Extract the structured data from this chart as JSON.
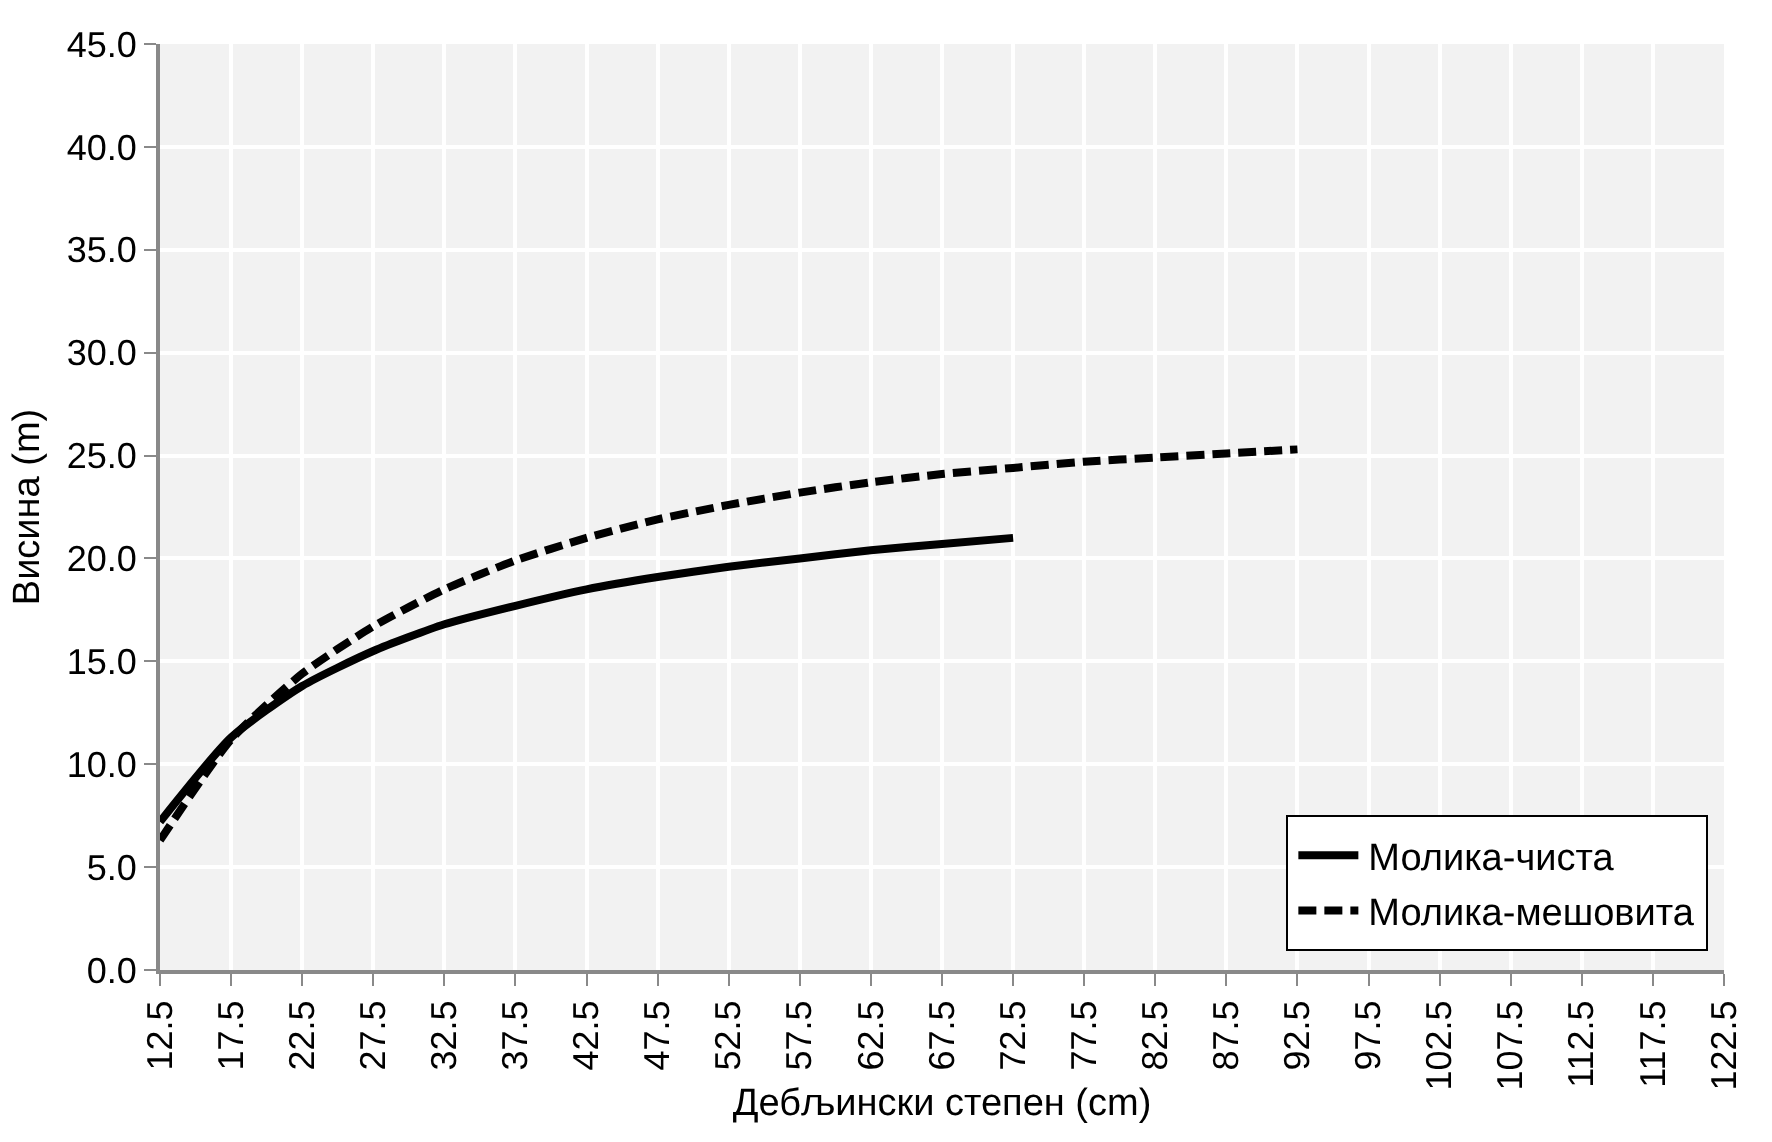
{
  "chart_data": {
    "type": "line",
    "xlabel": "Дебљински степен (cm)",
    "ylabel": "Висина (m)",
    "x": [
      12.5,
      17.5,
      22.5,
      27.5,
      32.5,
      37.5,
      42.5,
      47.5,
      52.5,
      57.5,
      62.5,
      67.5,
      72.5,
      77.5,
      82.5,
      87.5,
      92.5
    ],
    "series": [
      {
        "name": "Молика-чиста",
        "color": "#000000",
        "line_style": "solid",
        "values": [
          7.2,
          11.3,
          13.8,
          15.5,
          16.8,
          17.7,
          18.5,
          19.1,
          19.6,
          20.0,
          20.4,
          20.7,
          21.0,
          null,
          null,
          null,
          null
        ]
      },
      {
        "name": "Молика-мешовита",
        "color": "#000000",
        "line_style": "dashed",
        "values": [
          6.3,
          11.2,
          14.4,
          16.7,
          18.5,
          19.9,
          21.0,
          21.9,
          22.6,
          23.2,
          23.7,
          24.1,
          24.4,
          24.7,
          24.9,
          25.1,
          25.3
        ]
      }
    ],
    "xlim": [
      12.5,
      122.5
    ],
    "xticks": [
      12.5,
      17.5,
      22.5,
      27.5,
      32.5,
      37.5,
      42.5,
      47.5,
      52.5,
      57.5,
      62.5,
      67.5,
      72.5,
      77.5,
      82.5,
      87.5,
      92.5,
      97.5,
      102.5,
      107.5,
      112.5,
      117.5,
      122.5
    ],
    "ylim": [
      0,
      45
    ],
    "yticks": [
      {
        "value": 0,
        "label": "0.0"
      },
      {
        "value": 5,
        "label": "5.0"
      },
      {
        "value": 10,
        "label": "10.0"
      },
      {
        "value": 15,
        "label": "15.0"
      },
      {
        "value": 20,
        "label": "20.0"
      },
      {
        "value": 25,
        "label": "25.0"
      },
      {
        "value": 30,
        "label": "30.0"
      },
      {
        "value": 35,
        "label": "35.0"
      },
      {
        "value": 40,
        "label": "40.0"
      },
      {
        "value": 45,
        "label": "45.0"
      }
    ],
    "grid": true,
    "legend": "bottom right",
    "marker": "none"
  }
}
